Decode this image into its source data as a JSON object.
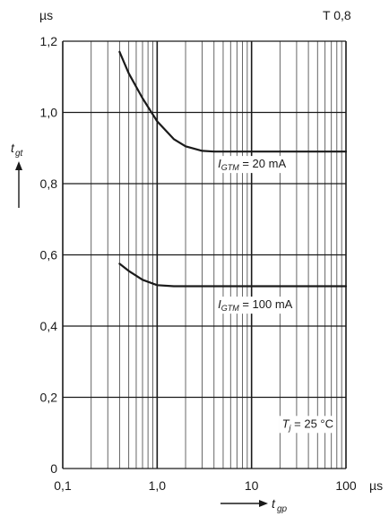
{
  "page": {
    "unit_top": "µs",
    "figure_code": "T 0,8"
  },
  "chart_data": {
    "type": "line",
    "x_scale": "log",
    "xlim": [
      0.1,
      100
    ],
    "ylim": [
      0,
      1.2
    ],
    "grid": true,
    "x_ticks": [
      {
        "value": 0.1,
        "label": "0,1"
      },
      {
        "value": 1,
        "label": "1,0"
      },
      {
        "value": 10,
        "label": "10"
      },
      {
        "value": 100,
        "label": "100"
      }
    ],
    "x_unit": "µs",
    "y_unit": "µs",
    "y_ticks": [
      {
        "value": 0,
        "label": "0"
      },
      {
        "value": 0.2,
        "label": "0,2"
      },
      {
        "value": 0.4,
        "label": "0,4"
      },
      {
        "value": 0.6,
        "label": "0,6"
      },
      {
        "value": 0.8,
        "label": "0,8"
      },
      {
        "value": 1.0,
        "label": "1,0"
      },
      {
        "value": 1.2,
        "label": "1,2"
      }
    ],
    "xlabel": {
      "main": "t",
      "sub": "gp"
    },
    "ylabel": {
      "main": "t",
      "sub": "gt"
    },
    "series": [
      {
        "label_main": "I",
        "label_sub": "GTM",
        "label_rest": " = 20 mA",
        "label_at": [
          4.4,
          0.845
        ],
        "x": [
          0.4,
          0.5,
          0.7,
          1.0,
          1.5,
          2.0,
          3.0,
          4.0,
          10,
          50,
          100
        ],
        "y": [
          1.17,
          1.11,
          1.04,
          0.975,
          0.925,
          0.905,
          0.892,
          0.89,
          0.89,
          0.89,
          0.89
        ]
      },
      {
        "label_main": "I",
        "label_sub": "GTM",
        "label_rest": " = 100 mA",
        "label_at": [
          4.4,
          0.45
        ],
        "x": [
          0.4,
          0.5,
          0.7,
          1.0,
          1.5,
          2.0,
          10,
          100
        ],
        "y": [
          0.575,
          0.555,
          0.53,
          0.515,
          0.512,
          0.512,
          0.512,
          0.512
        ]
      }
    ],
    "annotations": [
      {
        "main": "T",
        "sub": "j",
        "rest": " = 25 °C",
        "at": [
          21,
          0.115
        ]
      }
    ]
  }
}
